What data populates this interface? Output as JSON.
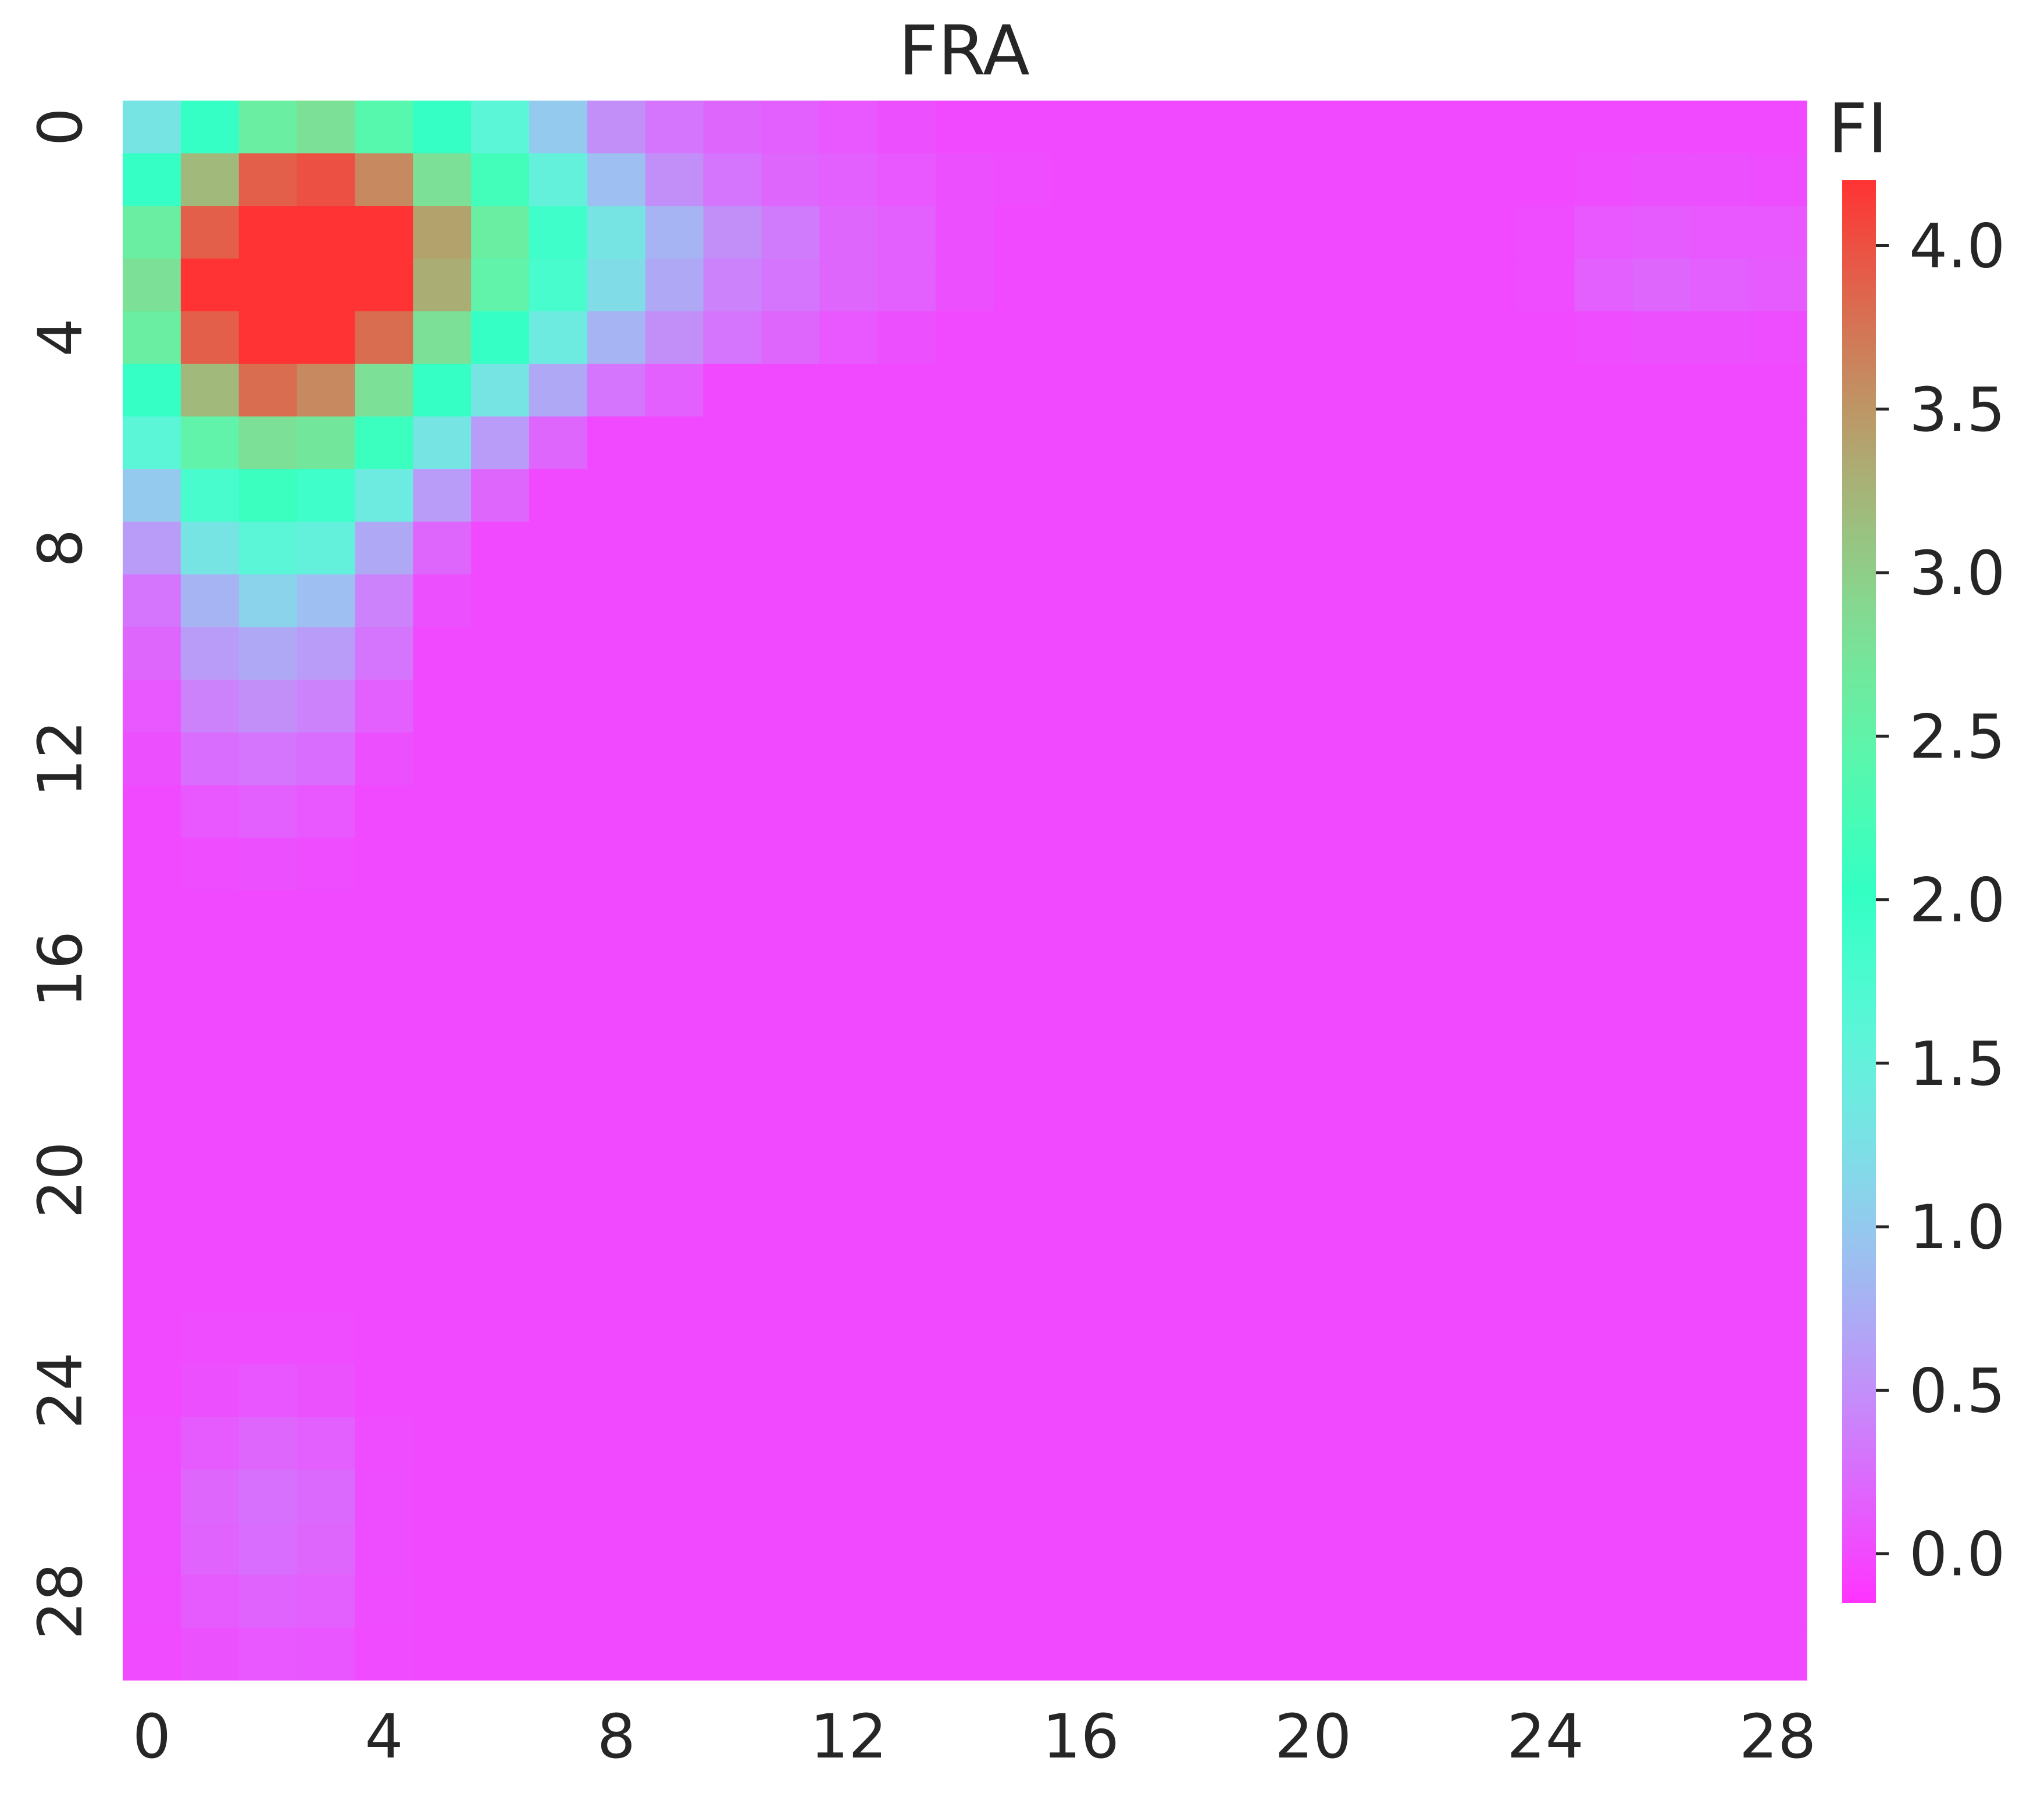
{
  "chart_data": {
    "type": "heatmap",
    "title": "FRA",
    "xlabel": "",
    "ylabel": "",
    "colorbar_label": "FI",
    "x_ticks": [
      "0",
      "4",
      "8",
      "12",
      "16",
      "20",
      "24",
      "28"
    ],
    "y_ticks": [
      "0",
      "4",
      "8",
      "12",
      "16",
      "20",
      "24",
      "28"
    ],
    "colorbar_ticks": [
      "0.0",
      "0.5",
      "1.0",
      "1.5",
      "2.0",
      "2.5",
      "3.0",
      "3.5",
      "4.0"
    ],
    "colorbar_range": [
      -0.15,
      4.2
    ],
    "colormap": "rainbow",
    "grid": false,
    "rows": 30,
    "cols": 29,
    "values": [
      [
        1.3,
        2.0,
        2.6,
        2.8,
        2.4,
        2.0,
        1.6,
        1.0,
        0.5,
        0.3,
        0.2,
        0.15,
        0.1,
        0.05,
        0,
        0,
        0,
        0,
        0,
        0,
        0,
        0,
        0,
        0,
        0,
        0,
        0,
        0,
        0
      ],
      [
        2.0,
        3.2,
        3.9,
        4.0,
        3.6,
        2.8,
        2.2,
        1.5,
        0.9,
        0.5,
        0.3,
        0.2,
        0.15,
        0.1,
        0.05,
        0.02,
        0,
        0,
        0,
        0,
        0,
        0,
        0,
        0,
        0,
        0.02,
        0.05,
        0.05,
        0.03
      ],
      [
        2.6,
        3.9,
        4.2,
        4.2,
        4.2,
        3.4,
        2.6,
        1.9,
        1.3,
        0.8,
        0.5,
        0.35,
        0.2,
        0.15,
        0.05,
        0,
        0,
        0,
        0,
        0,
        0,
        0,
        0,
        0,
        0.02,
        0.1,
        0.12,
        0.1,
        0.1
      ],
      [
        2.8,
        4.2,
        4.2,
        4.2,
        4.2,
        3.3,
        2.5,
        1.8,
        1.2,
        0.7,
        0.4,
        0.3,
        0.2,
        0.15,
        0.05,
        0,
        0,
        0,
        0,
        0,
        0,
        0,
        0,
        0,
        0.02,
        0.15,
        0.2,
        0.15,
        0.12
      ],
      [
        2.6,
        3.9,
        4.2,
        4.2,
        3.8,
        2.8,
        2.0,
        1.4,
        0.8,
        0.5,
        0.3,
        0.2,
        0.1,
        0.05,
        0,
        0,
        0,
        0,
        0,
        0,
        0,
        0,
        0,
        0,
        0,
        0.02,
        0.05,
        0.05,
        0.03
      ],
      [
        2.0,
        3.2,
        3.8,
        3.6,
        2.8,
        2.0,
        1.3,
        0.7,
        0.3,
        0.15,
        0,
        0,
        0,
        0,
        0,
        0,
        0,
        0,
        0,
        0,
        0,
        0,
        0,
        0,
        0,
        0,
        0,
        0,
        0
      ],
      [
        1.6,
        2.5,
        2.8,
        2.7,
        2.1,
        1.3,
        0.6,
        0.2,
        0,
        0,
        0,
        0,
        0,
        0,
        0,
        0,
        0,
        0,
        0,
        0,
        0,
        0,
        0,
        0,
        0,
        0,
        0,
        0,
        0
      ],
      [
        1.0,
        1.8,
        2.1,
        1.9,
        1.4,
        0.6,
        0.2,
        0,
        0,
        0,
        0,
        0,
        0,
        0,
        0,
        0,
        0,
        0,
        0,
        0,
        0,
        0,
        0,
        0,
        0,
        0,
        0,
        0,
        0
      ],
      [
        0.6,
        1.3,
        1.6,
        1.5,
        0.7,
        0.2,
        0,
        0,
        0,
        0,
        0,
        0,
        0,
        0,
        0,
        0,
        0,
        0,
        0,
        0,
        0,
        0,
        0,
        0,
        0,
        0,
        0,
        0,
        0
      ],
      [
        0.3,
        0.8,
        1.1,
        0.9,
        0.4,
        0.05,
        0,
        0,
        0,
        0,
        0,
        0,
        0,
        0,
        0,
        0,
        0,
        0,
        0,
        0,
        0,
        0,
        0,
        0,
        0,
        0,
        0,
        0,
        0
      ],
      [
        0.2,
        0.6,
        0.7,
        0.6,
        0.3,
        0,
        0,
        0,
        0,
        0,
        0,
        0,
        0,
        0,
        0,
        0,
        0,
        0,
        0,
        0,
        0,
        0,
        0,
        0,
        0,
        0,
        0,
        0,
        0
      ],
      [
        0.1,
        0.4,
        0.5,
        0.4,
        0.15,
        0,
        0,
        0,
        0,
        0,
        0,
        0,
        0,
        0,
        0,
        0,
        0,
        0,
        0,
        0,
        0,
        0,
        0,
        0,
        0,
        0,
        0,
        0,
        0
      ],
      [
        0.05,
        0.25,
        0.3,
        0.25,
        0.05,
        0,
        0,
        0,
        0,
        0,
        0,
        0,
        0,
        0,
        0,
        0,
        0,
        0,
        0,
        0,
        0,
        0,
        0,
        0,
        0,
        0,
        0,
        0,
        0
      ],
      [
        0,
        0.1,
        0.15,
        0.1,
        0,
        0,
        0,
        0,
        0,
        0,
        0,
        0,
        0,
        0,
        0,
        0,
        0,
        0,
        0,
        0,
        0,
        0,
        0,
        0,
        0,
        0,
        0,
        0,
        0
      ],
      [
        0,
        0.02,
        0.05,
        0.02,
        0,
        0,
        0,
        0,
        0,
        0,
        0,
        0,
        0,
        0,
        0,
        0,
        0,
        0,
        0,
        0,
        0,
        0,
        0,
        0,
        0,
        0,
        0,
        0,
        0
      ],
      [
        0,
        0,
        0,
        0,
        0,
        0,
        0,
        0,
        0,
        0,
        0,
        0,
        0,
        0,
        0,
        0,
        0,
        0,
        0,
        0,
        0,
        0,
        0,
        0,
        0,
        0,
        0,
        0,
        0
      ],
      [
        0,
        0,
        0,
        0,
        0,
        0,
        0,
        0,
        0,
        0,
        0,
        0,
        0,
        0,
        0,
        0,
        0,
        0,
        0,
        0,
        0,
        0,
        0,
        0,
        0,
        0,
        0,
        0,
        0
      ],
      [
        0,
        0,
        0,
        0,
        0,
        0,
        0,
        0,
        0,
        0,
        0,
        0,
        0,
        0,
        0,
        0,
        0,
        0,
        0,
        0,
        0,
        0,
        0,
        0,
        0,
        0,
        0,
        0,
        0
      ],
      [
        0,
        0,
        0,
        0,
        0,
        0,
        0,
        0,
        0,
        0,
        0,
        0,
        0,
        0,
        0,
        0,
        0,
        0,
        0,
        0,
        0,
        0,
        0,
        0,
        0,
        0,
        0,
        0,
        0
      ],
      [
        0,
        0,
        0,
        0,
        0,
        0,
        0,
        0,
        0,
        0,
        0,
        0,
        0,
        0,
        0,
        0,
        0,
        0,
        0,
        0,
        0,
        0,
        0,
        0,
        0,
        0,
        0,
        0,
        0
      ],
      [
        0,
        0,
        0,
        0,
        0,
        0,
        0,
        0,
        0,
        0,
        0,
        0,
        0,
        0,
        0,
        0,
        0,
        0,
        0,
        0,
        0,
        0,
        0,
        0,
        0,
        0,
        0,
        0,
        0
      ],
      [
        0,
        0,
        0,
        0,
        0,
        0,
        0,
        0,
        0,
        0,
        0,
        0,
        0,
        0,
        0,
        0,
        0,
        0,
        0,
        0,
        0,
        0,
        0,
        0,
        0,
        0,
        0,
        0,
        0
      ],
      [
        0,
        0,
        0,
        0,
        0,
        0,
        0,
        0,
        0,
        0,
        0,
        0,
        0,
        0,
        0,
        0,
        0,
        0,
        0,
        0,
        0,
        0,
        0,
        0,
        0,
        0,
        0,
        0,
        0
      ],
      [
        0,
        0.02,
        0.02,
        0.02,
        0,
        0,
        0,
        0,
        0,
        0,
        0,
        0,
        0,
        0,
        0,
        0,
        0,
        0,
        0,
        0,
        0,
        0,
        0,
        0,
        0,
        0,
        0,
        0,
        0
      ],
      [
        0,
        0.05,
        0.08,
        0.06,
        0,
        0,
        0,
        0,
        0,
        0,
        0,
        0,
        0,
        0,
        0,
        0,
        0,
        0,
        0,
        0,
        0,
        0,
        0,
        0,
        0,
        0,
        0,
        0,
        0
      ],
      [
        0.02,
        0.12,
        0.2,
        0.15,
        0.02,
        0,
        0,
        0,
        0,
        0,
        0,
        0,
        0,
        0,
        0,
        0,
        0,
        0,
        0,
        0,
        0,
        0,
        0,
        0,
        0,
        0,
        0,
        0,
        0
      ],
      [
        0.03,
        0.2,
        0.28,
        0.22,
        0.03,
        0,
        0,
        0,
        0,
        0,
        0,
        0,
        0,
        0,
        0,
        0,
        0,
        0,
        0,
        0,
        0,
        0,
        0,
        0,
        0,
        0,
        0,
        0,
        0
      ],
      [
        0.03,
        0.18,
        0.25,
        0.2,
        0.03,
        0,
        0,
        0,
        0,
        0,
        0,
        0,
        0,
        0,
        0,
        0,
        0,
        0,
        0,
        0,
        0,
        0,
        0,
        0,
        0,
        0,
        0,
        0,
        0
      ],
      [
        0.02,
        0.12,
        0.18,
        0.15,
        0.02,
        0,
        0,
        0,
        0,
        0,
        0,
        0,
        0,
        0,
        0,
        0,
        0,
        0,
        0,
        0,
        0,
        0,
        0,
        0,
        0,
        0,
        0,
        0,
        0
      ],
      [
        0.01,
        0.06,
        0.1,
        0.08,
        0.01,
        0,
        0,
        0,
        0,
        0,
        0,
        0,
        0,
        0,
        0,
        0,
        0,
        0,
        0,
        0,
        0,
        0,
        0,
        0,
        0,
        0,
        0,
        0,
        0
      ]
    ]
  }
}
